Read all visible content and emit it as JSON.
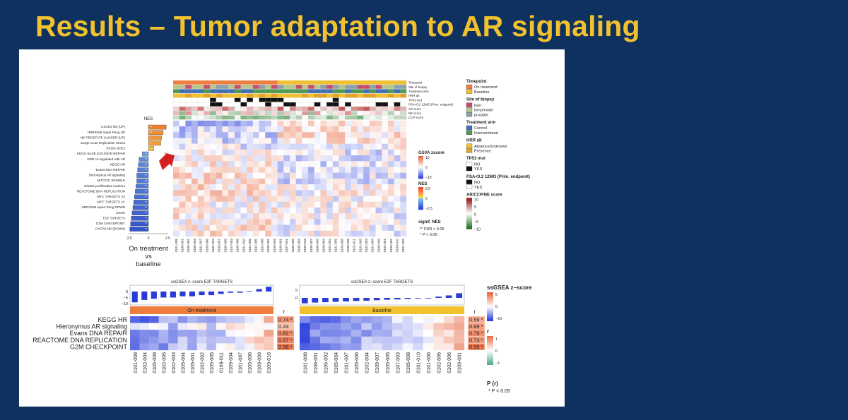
{
  "slide": {
    "title": "Results – Tumor adaptation to AR signaling"
  },
  "top_panel": {
    "nes_bar": {
      "title": "NES",
      "pathways": [
        "CXCR2 NE (UP)",
        "HRR/DSB repair Peng UP",
        "NE PROSTATE CANCER (UP)",
        "Jungk Acute Replication Stress",
        "KEGG NHEJ",
        "KEGG BASE EXCISION REPAIR",
        "DDR co-regulated with AR",
        "KEGG HR",
        "Evans DNA REPAIR",
        "Hieronymus AR signaling",
        "MITOTIC SPINDLE",
        "Classic proliferation markers",
        "REACTOME DNA REPLICATION",
        "MYC TARGETS V2",
        "MYC TARGETS V1",
        "HRR/DSB repair Peng DOWN",
        "CIN70",
        "E2F TARGETS",
        "G2M CHECKPOINT",
        "CXCR2 NE (DOWN)"
      ],
      "nes": [
        2.3,
        1.9,
        1.7,
        1.6,
        0.7,
        -0.8,
        -1.2,
        -1.3,
        -1.4,
        -1.5,
        -1.5,
        -1.6,
        -1.7,
        -1.8,
        -1.9,
        -2.0,
        -2.1,
        -2.2,
        -2.3,
        -2.4
      ],
      "signif": [
        "**",
        "**",
        "*",
        "*",
        "",
        "*",
        "**",
        "**",
        "**",
        "**",
        "**",
        "**",
        "**",
        "**",
        "**",
        "**",
        "**",
        "**",
        "**",
        "**"
      ],
      "axis_ticks": [
        "-2.5",
        "0",
        "2.5"
      ],
      "caption": [
        "On treatment",
        "vs",
        "baseline"
      ]
    },
    "annotation_labels": [
      "Timepoint",
      "Site of biopsy",
      "Treatment arm",
      "HRR alt",
      "TP53 mut",
      "PSA<0.2 12MO (Prim. endpoint)",
      "AR score",
      "NE score",
      "CCP score"
    ],
    "sample_ids": [
      "0101-008",
      "0106-001",
      "0105-002",
      "0105-004",
      "0101-007",
      "0105-006",
      "0102-004",
      "0109-007",
      "0105-005",
      "0107-003",
      "0105-008",
      "0101-010",
      "0101-006",
      "0102-005",
      "0102-006",
      "0109-002",
      "0109-003",
      "0109-001",
      "0107-001",
      "0109-005",
      "0106-004",
      "0109-016",
      "0105-007",
      "0106-003",
      "0109-004",
      "0102-002",
      "0101-009",
      "0109-008",
      "0109-006",
      "0101-011",
      "0101-005",
      "0102-003",
      "0101-004",
      "0109-009",
      "0102-001",
      "0106-002",
      "0109-010",
      "0101-003"
    ],
    "legend": {
      "timepoint": {
        "title": "Timepoint",
        "items": [
          {
            "label": "On treatment",
            "color": "#ef7d3c"
          },
          {
            "label": "Baseline",
            "color": "#f2c12e"
          }
        ]
      },
      "site": {
        "title": "Site of biopsy",
        "items": [
          {
            "label": "liver",
            "color": "#c94b6d"
          },
          {
            "label": "lymphnode",
            "color": "#b7c58a"
          },
          {
            "label": "prostate",
            "color": "#8aa0ad"
          }
        ]
      },
      "arm": {
        "title": "Treatment arm",
        "items": [
          {
            "label": "Control",
            "color": "#3f6fb5"
          },
          {
            "label": "Interventional",
            "color": "#4f9a52"
          }
        ]
      },
      "hrr": {
        "title": "HRR alt",
        "items": [
          {
            "label": "Absence/Unknown",
            "color": "#f2c12e"
          },
          {
            "label": "Presence",
            "color": "#e6a12a"
          }
        ]
      },
      "tp53": {
        "title": "TP53 mut",
        "items": [
          {
            "label": "NO",
            "color": "#ffffff"
          },
          {
            "label": "YES",
            "color": "#111111"
          }
        ]
      },
      "psa": {
        "title": "PSA<0.2 12MO (Prim. endpoint)",
        "items": [
          {
            "label": "NO",
            "color": "#111111"
          },
          {
            "label": "YES",
            "color": "#ffffff"
          }
        ]
      },
      "score": {
        "title": "AR/CCP/NE score",
        "ticks": [
          "10",
          "5",
          "0",
          "−5",
          "−10"
        ]
      },
      "gsva": {
        "title": "GSVA zscore",
        "ticks": [
          "10",
          "0",
          "−10"
        ]
      },
      "nes": {
        "title": "NES",
        "ticks": [
          "2.5",
          "0",
          "−2.5"
        ]
      },
      "signif": {
        "title": "signif. NES",
        "lines": [
          "** FDR < 0.05",
          "*  P < 0.05"
        ]
      }
    }
  },
  "bottom_panel": {
    "pathways": [
      "KEGG HR",
      "Hieronymus AR signaling",
      "Evans DNA REPAIR",
      "REACTOME DNA REPLICATION",
      "G2M CHECKPOINT"
    ],
    "on_treatment": {
      "title": "ssGSEA z−score E2F TARGETS",
      "group_label": "On treatment",
      "samples": [
        "0101-008",
        "0102-004",
        "0105-008",
        "0102-005",
        "0102-003",
        "0105-004",
        "0105-001",
        "0102-002",
        "0105-005",
        "0109-011",
        "0109-004",
        "0101-007",
        "0105-006",
        "0109-009",
        "0109-016"
      ],
      "e2f_z": [
        -9,
        -7,
        -6,
        -5,
        -5,
        -4,
        -4,
        -3,
        -3,
        -2,
        -1,
        -1,
        0.5,
        2,
        4
      ],
      "y_ticks": [
        "0",
        "−5",
        "−10"
      ],
      "r_values": [
        "0.74 *",
        "0.43",
        "0.82 *",
        "0.87 *",
        "0.98 *"
      ]
    },
    "baseline": {
      "title": "ssGSEA z−score E2F TARGETS",
      "group_label": "Baseline",
      "samples": [
        "0101-008",
        "0106-001",
        "0105-002",
        "0105-004",
        "0101-007",
        "0105-006",
        "0102-004",
        "0109-007",
        "0105-005",
        "0107-003",
        "0105-008",
        "0101-010",
        "0101-006",
        "0102-005",
        "0102-006",
        "0109-001"
      ],
      "e2f_z": [
        -3.5,
        -3.0,
        -2.8,
        -2.5,
        -2.3,
        -2.0,
        -1.8,
        -1.5,
        -1.2,
        -1.0,
        -0.7,
        -0.4,
        0,
        0.8,
        1.6,
        3.0
      ],
      "y_ticks": [
        "5",
        "0"
      ],
      "r_values": [
        "0.59 *",
        "0.69 *",
        "0.79 *",
        "0.73 *",
        "0.95 *"
      ]
    },
    "r_label": "r",
    "legend": {
      "ssgsea": {
        "title": "ssGSEA z−score",
        "ticks": [
          "5",
          "0",
          "−10"
        ]
      },
      "r": {
        "title": "r",
        "ticks": [
          "1",
          "0",
          "−1"
        ]
      },
      "p": {
        "title": "P (r)",
        "lines": [
          "*  P < 0.05"
        ]
      }
    }
  }
}
